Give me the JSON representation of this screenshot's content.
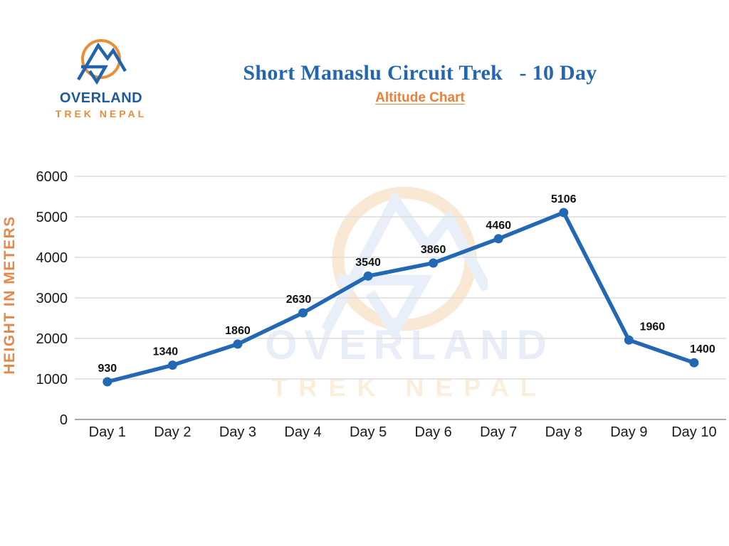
{
  "header": {
    "logo_line1": "OVERLAND",
    "logo_line2": "TREK NEPAL",
    "title": "Short Manaslu Circuit Trek   - 10 Day",
    "subtitle": "Altitude Chart"
  },
  "watermark": {
    "line1": "OVERLAND",
    "line2": "TREK NEPAL"
  },
  "colors": {
    "line": "#2268b4",
    "title_blue": "#2365b0",
    "logo_blue": "#1d5a9e",
    "orange": "#ee8b33",
    "axis_label_orange": "#e8874a",
    "grid": "#dcdcdc",
    "zero_axis": "#a9a9a9",
    "tick_text": "#1a1a1a",
    "point_label": "#111111"
  },
  "chart_data": {
    "type": "line",
    "title": "Short Manaslu Circuit Trek - 10 Day",
    "subtitle": "Altitude Chart",
    "categories": [
      "Day 1",
      "Day 2",
      "Day 3",
      "Day 4",
      "Day 5",
      "Day 6",
      "Day 7",
      "Day 8",
      "Day 9",
      "Day 10"
    ],
    "values": [
      930,
      1340,
      1860,
      2630,
      3540,
      3860,
      4460,
      5106,
      1960,
      1400
    ],
    "xlabel": "",
    "ylabel": "HEIGHT IN METERS",
    "ylim": [
      0,
      6000
    ],
    "ytick_step": 1000,
    "yticks": [
      0,
      1000,
      2000,
      3000,
      4000,
      5000,
      6000
    ],
    "grid": "horizontal",
    "legend": "none",
    "point_labels": true
  }
}
